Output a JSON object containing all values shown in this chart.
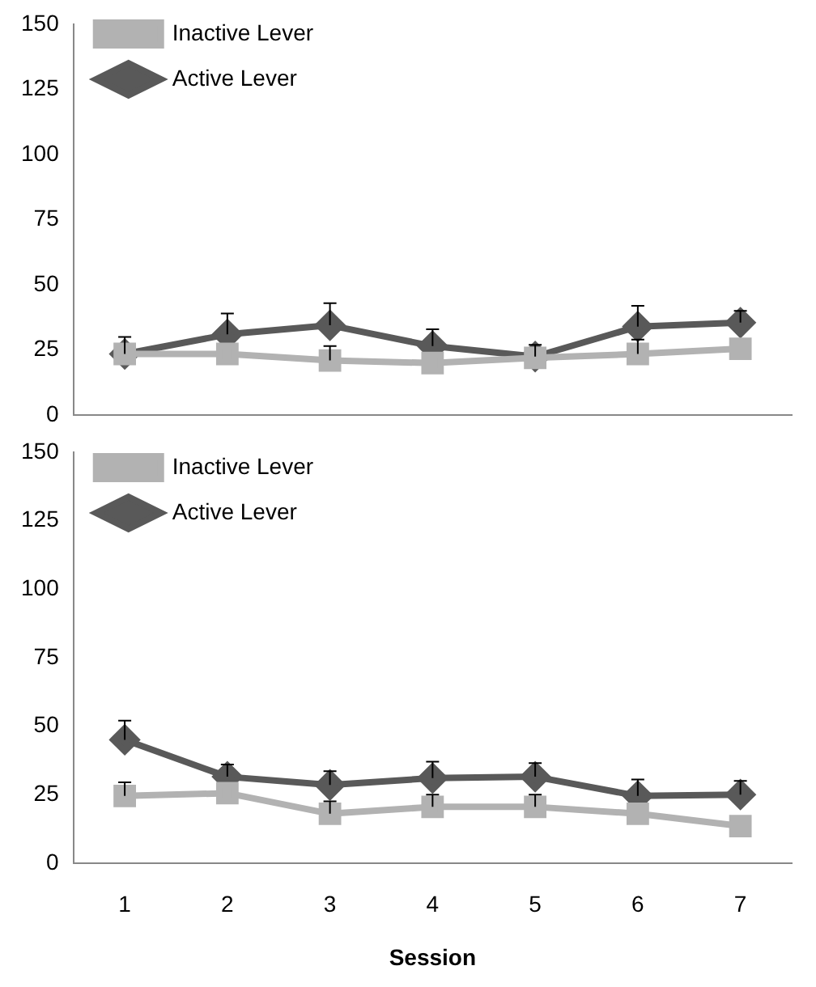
{
  "chart_data": [
    {
      "type": "line",
      "categories": [
        "1",
        "2",
        "3",
        "4",
        "5",
        "6",
        "7"
      ],
      "ylim": [
        0,
        150
      ],
      "yticks": [
        0,
        25,
        50,
        75,
        100,
        125,
        150
      ],
      "grid": false,
      "legend": "top left",
      "tick_labels": "y",
      "series": [
        {
          "name": "Active Lever",
          "color": "#595959",
          "marker": "diamond",
          "values": [
            23.5,
            31,
            34.5,
            26.5,
            22.5,
            34,
            35.5
          ],
          "errors": [
            [
              23.5,
              30
            ],
            [
              31,
              39
            ],
            [
              34.5,
              43
            ],
            [
              26.5,
              33
            ],
            [
              22.5,
              27
            ],
            [
              34,
              42
            ],
            [
              35.5,
              40
            ]
          ]
        },
        {
          "name": "Inactive Lever",
          "color": "#b2b2b2",
          "marker": "square",
          "values": [
            23.5,
            23.5,
            21,
            20,
            22,
            23.5,
            25.5
          ],
          "errors": [
            null,
            null,
            [
              21,
              26.5
            ],
            null,
            null,
            [
              23.5,
              29
            ],
            null
          ]
        }
      ]
    },
    {
      "type": "line",
      "categories": [
        "1",
        "2",
        "3",
        "4",
        "5",
        "6",
        "7"
      ],
      "xlabel": "Session",
      "ylim": [
        0,
        150
      ],
      "yticks": [
        0,
        25,
        50,
        75,
        100,
        125,
        150
      ],
      "grid": false,
      "legend": "top left",
      "series": [
        {
          "name": "Active Lever",
          "color": "#595959",
          "marker": "diamond",
          "values": [
            45,
            31.5,
            28.5,
            31,
            31.5,
            24.5,
            25
          ],
          "errors": [
            [
              45,
              52
            ],
            [
              31.5,
              36
            ],
            [
              28.5,
              33.5
            ],
            [
              31,
              37
            ],
            [
              31.5,
              36.5
            ],
            [
              24.5,
              30.5
            ],
            [
              25,
              30
            ]
          ]
        },
        {
          "name": "Inactive Lever",
          "color": "#b2b2b2",
          "marker": "square",
          "values": [
            24.5,
            25.5,
            18,
            20.5,
            20.5,
            18,
            13.5
          ],
          "errors": [
            [
              24.5,
              29.5
            ],
            null,
            [
              18,
              22.5
            ],
            [
              20.5,
              25
            ],
            [
              20.5,
              25
            ],
            null,
            null
          ]
        }
      ]
    }
  ]
}
